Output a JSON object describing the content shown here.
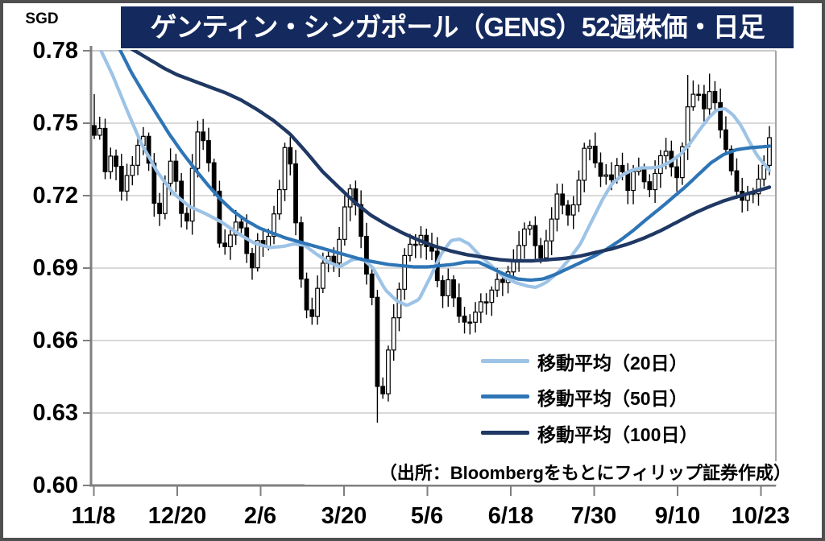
{
  "header": {
    "unit_label": "SGD",
    "title": "ゲンティン・シンガポール（GENS）52週株価・日足"
  },
  "chart_data": {
    "type": "candlestick",
    "title": "ゲンティン・シンガポール（GENS）52週株価・日足",
    "currency": "SGD",
    "grid": true,
    "legend_position": "inside-bottom-right",
    "y_axis": {
      "min": 0.6,
      "max": 0.78,
      "tick_step": 0.03,
      "ticks": [
        "0.78",
        "0.75",
        "0.72",
        "0.69",
        "0.66",
        "0.63",
        "0.60"
      ]
    },
    "x_axis": {
      "tick_labels": [
        "11/8",
        "12/20",
        "2/6",
        "3/20",
        "5/6",
        "6/18",
        "7/30",
        "9/10",
        "10/23"
      ],
      "span": "52 weeks, daily bars"
    },
    "closes": [
      0.745,
      0.752,
      0.746,
      0.728,
      0.733,
      0.737,
      0.729,
      0.733,
      0.72,
      0.724,
      0.728,
      0.73,
      0.733,
      0.737,
      0.744,
      0.746,
      0.74,
      0.733,
      0.72,
      0.715,
      0.71,
      0.718,
      0.725,
      0.73,
      0.736,
      0.73,
      0.72,
      0.714,
      0.7,
      0.712,
      0.725,
      0.738,
      0.746,
      0.748,
      0.742,
      0.737,
      0.731,
      0.727,
      0.707,
      0.7,
      0.695,
      0.701,
      0.703,
      0.705,
      0.709,
      0.711,
      0.705,
      0.699,
      0.692,
      0.689,
      0.699,
      0.702,
      0.7,
      0.698,
      0.702,
      0.708,
      0.713,
      0.719,
      0.725,
      0.741,
      0.737,
      0.733,
      0.72,
      0.703,
      0.689,
      0.679,
      0.673,
      0.667,
      0.671,
      0.679,
      0.685,
      0.691,
      0.699,
      0.694,
      0.689,
      0.695,
      0.7,
      0.709,
      0.716,
      0.721,
      0.724,
      0.718,
      0.712,
      0.703,
      0.695,
      0.684,
      0.679,
      0.676,
      0.641,
      0.641,
      0.637,
      0.652,
      0.661,
      0.669,
      0.672,
      0.683,
      0.692,
      0.698,
      0.701,
      0.696,
      0.7,
      0.706,
      0.702,
      0.698,
      0.701,
      0.697,
      0.689,
      0.683,
      0.677,
      0.681,
      0.685,
      0.687,
      0.675,
      0.671,
      0.669,
      0.667,
      0.671,
      0.667,
      0.669,
      0.674,
      0.677,
      0.673,
      0.676,
      0.679,
      0.682,
      0.684,
      0.688,
      0.684,
      0.687,
      0.689,
      0.691,
      0.695,
      0.699,
      0.703,
      0.707,
      0.71,
      0.705,
      0.7,
      0.696,
      0.694,
      0.699,
      0.703,
      0.709,
      0.714,
      0.721,
      0.718,
      0.715,
      0.713,
      0.71,
      0.716,
      0.722,
      0.728,
      0.735,
      0.746,
      0.741,
      0.736,
      0.733,
      0.73,
      0.726,
      0.728,
      0.731,
      0.726,
      0.729,
      0.735,
      0.731,
      0.727,
      0.722,
      0.728,
      0.731,
      0.733,
      0.729,
      0.726,
      0.721,
      0.723,
      0.727,
      0.732,
      0.736,
      0.74,
      0.738,
      0.735,
      0.729,
      0.726,
      0.733,
      0.741,
      0.752,
      0.76,
      0.764,
      0.757,
      0.762,
      0.758,
      0.755,
      0.762,
      0.765,
      0.759,
      0.751,
      0.746,
      0.741,
      0.737,
      0.731,
      0.726,
      0.721,
      0.717,
      0.719,
      0.722,
      0.718,
      0.721,
      0.725,
      0.728,
      0.731,
      0.736,
      0.744
    ],
    "key_extremes": [
      {
        "t": 0.421,
        "price": 0.626,
        "type": "low"
      },
      {
        "t": 0.877,
        "price": 0.77,
        "type": "high"
      },
      {
        "t": 0.914,
        "price": 0.7705,
        "type": "high"
      },
      {
        "t": 0.0,
        "price": 0.762,
        "type": "high"
      }
    ],
    "candle_style": {
      "up_fill": "#ffffff",
      "down_fill": "#000000",
      "outline": "#000000"
    },
    "ma20": {
      "label": "移動平均（20日）",
      "color": "#9dc3e6",
      "points": [
        [
          0.01,
          0.78
        ],
        [
          0.027,
          0.77
        ],
        [
          0.049,
          0.755
        ],
        [
          0.069,
          0.742
        ],
        [
          0.093,
          0.73
        ],
        [
          0.117,
          0.721
        ],
        [
          0.141,
          0.7155
        ],
        [
          0.165,
          0.7125
        ],
        [
          0.189,
          0.709
        ],
        [
          0.212,
          0.7045
        ],
        [
          0.236,
          0.7005
        ],
        [
          0.26,
          0.6985
        ],
        [
          0.28,
          0.699
        ],
        [
          0.296,
          0.7
        ],
        [
          0.311,
          0.6995
        ],
        [
          0.328,
          0.696
        ],
        [
          0.347,
          0.6925
        ],
        [
          0.364,
          0.6905
        ],
        [
          0.382,
          0.6935
        ],
        [
          0.397,
          0.694
        ],
        [
          0.413,
          0.69
        ],
        [
          0.431,
          0.681
        ],
        [
          0.448,
          0.6765
        ],
        [
          0.463,
          0.6745
        ],
        [
          0.481,
          0.677
        ],
        [
          0.499,
          0.687
        ],
        [
          0.514,
          0.696
        ],
        [
          0.529,
          0.7015
        ],
        [
          0.541,
          0.702
        ],
        [
          0.555,
          0.7
        ],
        [
          0.57,
          0.6955
        ],
        [
          0.588,
          0.691
        ],
        [
          0.606,
          0.6865
        ],
        [
          0.624,
          0.684
        ],
        [
          0.642,
          0.6825
        ],
        [
          0.654,
          0.682
        ],
        [
          0.669,
          0.684
        ],
        [
          0.686,
          0.688
        ],
        [
          0.703,
          0.6935
        ],
        [
          0.72,
          0.7
        ],
        [
          0.736,
          0.709
        ],
        [
          0.753,
          0.7185
        ],
        [
          0.767,
          0.725
        ],
        [
          0.782,
          0.7285
        ],
        [
          0.796,
          0.7305
        ],
        [
          0.81,
          0.7315
        ],
        [
          0.825,
          0.7315
        ],
        [
          0.839,
          0.732
        ],
        [
          0.853,
          0.734
        ],
        [
          0.868,
          0.737
        ],
        [
          0.882,
          0.7415
        ],
        [
          0.896,
          0.747
        ],
        [
          0.911,
          0.7525
        ],
        [
          0.922,
          0.7555
        ],
        [
          0.934,
          0.756
        ],
        [
          0.946,
          0.7535
        ],
        [
          0.958,
          0.749
        ],
        [
          0.97,
          0.7425
        ],
        [
          0.982,
          0.7365
        ],
        [
          0.994,
          0.7325
        ],
        [
          1.0,
          0.7305
        ]
      ]
    },
    "ma50": {
      "label": "移動平均（50日）",
      "color": "#2e75b6",
      "points": [
        [
          0.037,
          0.781
        ],
        [
          0.054,
          0.7715
        ],
        [
          0.073,
          0.7625
        ],
        [
          0.092,
          0.754
        ],
        [
          0.111,
          0.7455
        ],
        [
          0.13,
          0.738
        ],
        [
          0.149,
          0.731
        ],
        [
          0.168,
          0.7245
        ],
        [
          0.187,
          0.7185
        ],
        [
          0.206,
          0.7135
        ],
        [
          0.226,
          0.7095
        ],
        [
          0.245,
          0.7065
        ],
        [
          0.264,
          0.7045
        ],
        [
          0.283,
          0.7025
        ],
        [
          0.302,
          0.701
        ],
        [
          0.321,
          0.6995
        ],
        [
          0.34,
          0.698
        ],
        [
          0.359,
          0.6965
        ],
        [
          0.378,
          0.695
        ],
        [
          0.397,
          0.6935
        ],
        [
          0.416,
          0.6925
        ],
        [
          0.436,
          0.6915
        ],
        [
          0.455,
          0.691
        ],
        [
          0.474,
          0.6905
        ],
        [
          0.493,
          0.6905
        ],
        [
          0.512,
          0.691
        ],
        [
          0.531,
          0.6915
        ],
        [
          0.55,
          0.6925
        ],
        [
          0.569,
          0.6925
        ],
        [
          0.588,
          0.69
        ],
        [
          0.607,
          0.6875
        ],
        [
          0.627,
          0.6855
        ],
        [
          0.646,
          0.685
        ],
        [
          0.665,
          0.6855
        ],
        [
          0.684,
          0.6875
        ],
        [
          0.703,
          0.69
        ],
        [
          0.722,
          0.6925
        ],
        [
          0.741,
          0.695
        ],
        [
          0.76,
          0.698
        ],
        [
          0.779,
          0.7015
        ],
        [
          0.798,
          0.7055
        ],
        [
          0.817,
          0.71
        ],
        [
          0.837,
          0.7145
        ],
        [
          0.856,
          0.719
        ],
        [
          0.875,
          0.7235
        ],
        [
          0.894,
          0.7285
        ],
        [
          0.913,
          0.7335
        ],
        [
          0.932,
          0.737
        ],
        [
          0.951,
          0.739
        ],
        [
          0.97,
          0.7398
        ],
        [
          0.989,
          0.7402
        ],
        [
          1.0,
          0.7405
        ]
      ]
    },
    "ma100": {
      "label": "移動平均（100日）",
      "color": "#1f3864",
      "points": [
        [
          0.054,
          0.781
        ],
        [
          0.069,
          0.7785
        ],
        [
          0.087,
          0.7755
        ],
        [
          0.105,
          0.7725
        ],
        [
          0.123,
          0.77
        ],
        [
          0.147,
          0.7675
        ],
        [
          0.171,
          0.765
        ],
        [
          0.195,
          0.7625
        ],
        [
          0.218,
          0.7595
        ],
        [
          0.242,
          0.7555
        ],
        [
          0.266,
          0.751
        ],
        [
          0.29,
          0.7455
        ],
        [
          0.314,
          0.738
        ],
        [
          0.338,
          0.73
        ],
        [
          0.362,
          0.7235
        ],
        [
          0.385,
          0.7175
        ],
        [
          0.409,
          0.712
        ],
        [
          0.433,
          0.708
        ],
        [
          0.457,
          0.7045
        ],
        [
          0.481,
          0.7015
        ],
        [
          0.505,
          0.699
        ],
        [
          0.529,
          0.697
        ],
        [
          0.553,
          0.6955
        ],
        [
          0.576,
          0.6945
        ],
        [
          0.6,
          0.6935
        ],
        [
          0.624,
          0.693
        ],
        [
          0.648,
          0.693
        ],
        [
          0.672,
          0.6935
        ],
        [
          0.696,
          0.694
        ],
        [
          0.72,
          0.695
        ],
        [
          0.743,
          0.6965
        ],
        [
          0.767,
          0.698
        ],
        [
          0.791,
          0.7
        ],
        [
          0.815,
          0.7025
        ],
        [
          0.839,
          0.7055
        ],
        [
          0.863,
          0.709
        ],
        [
          0.887,
          0.7125
        ],
        [
          0.911,
          0.7155
        ],
        [
          0.934,
          0.718
        ],
        [
          0.958,
          0.72
        ],
        [
          0.982,
          0.722
        ],
        [
          1.0,
          0.7235
        ]
      ]
    },
    "source_note": "（出所：Bloombergをもとにフィリップ証券作成）"
  }
}
